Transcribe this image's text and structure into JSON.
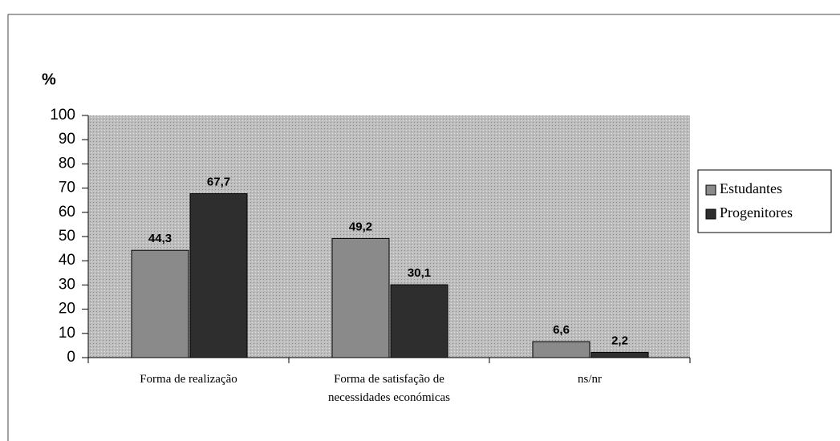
{
  "chart_data": {
    "type": "bar",
    "ylabel": "%",
    "categories": [
      "Forma de realização",
      "Forma de satisfação de necessidades económicas",
      "ns/nr"
    ],
    "series": [
      {
        "name": "Estudantes",
        "color": "#8a8a8a",
        "values": [
          44.3,
          49.2,
          6.6
        ],
        "value_labels": [
          "44,3",
          "49,2",
          "6,6"
        ]
      },
      {
        "name": "Progenitores",
        "color": "#2e2e2e",
        "values": [
          67.7,
          30.1,
          2.2
        ],
        "value_labels": [
          "67,7",
          "30,1",
          "2,2"
        ]
      }
    ],
    "ylim": [
      0,
      100
    ],
    "yticks": [
      0,
      10,
      20,
      30,
      40,
      50,
      60,
      70,
      80,
      90,
      100
    ],
    "legend": "right"
  }
}
